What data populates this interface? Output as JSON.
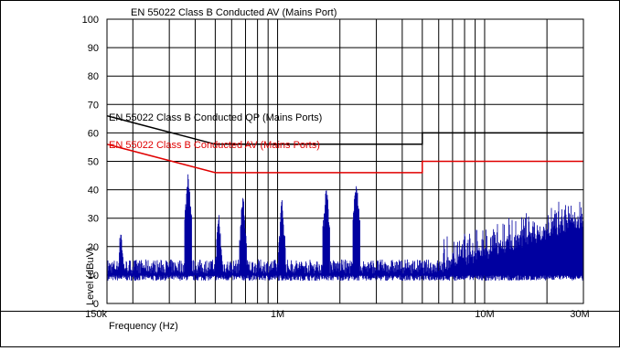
{
  "chart_data": {
    "type": "line",
    "title": "EN 55022 Class B Conducted AV (Mains Port)",
    "xlabel": "Frequency (Hz)",
    "ylabel": "Level (dBuV)",
    "x_scale": "log",
    "xlim": [
      150000,
      30000000
    ],
    "ylim": [
      0,
      100
    ],
    "grid": true,
    "x_tick_labels": [
      {
        "label": "150k",
        "value": 150000
      },
      {
        "label": "1M",
        "value": 1000000
      },
      {
        "label": "10M",
        "value": 10000000
      },
      {
        "label": "30M",
        "value": 30000000
      }
    ],
    "y_ticks": [
      0,
      10,
      20,
      30,
      40,
      50,
      60,
      70,
      80,
      90,
      100
    ],
    "series": [
      {
        "name": "EN 55022 Class B Conducted QP (Mains Ports)",
        "color": "#000000",
        "x": [
          150000,
          500000,
          5000000,
          5000000,
          30000000
        ],
        "y": [
          66,
          56,
          56,
          60,
          60
        ]
      },
      {
        "name": "EN 55022 Class B Conducted AV (Mains Ports)",
        "color": "#e00000",
        "x": [
          150000,
          500000,
          5000000,
          5000000,
          30000000
        ],
        "y": [
          56,
          46,
          46,
          50,
          50
        ]
      },
      {
        "color": "#0000a0",
        "peaks": [
          {
            "x": 175000,
            "y": 25
          },
          {
            "x": 370000,
            "y": 45
          },
          {
            "x": 520000,
            "y": 30
          },
          {
            "x": 680000,
            "y": 37
          },
          {
            "x": 1050000,
            "y": 35
          },
          {
            "x": 1720000,
            "y": 41
          },
          {
            "x": 2400000,
            "y": 43
          }
        ]
      }
    ]
  }
}
